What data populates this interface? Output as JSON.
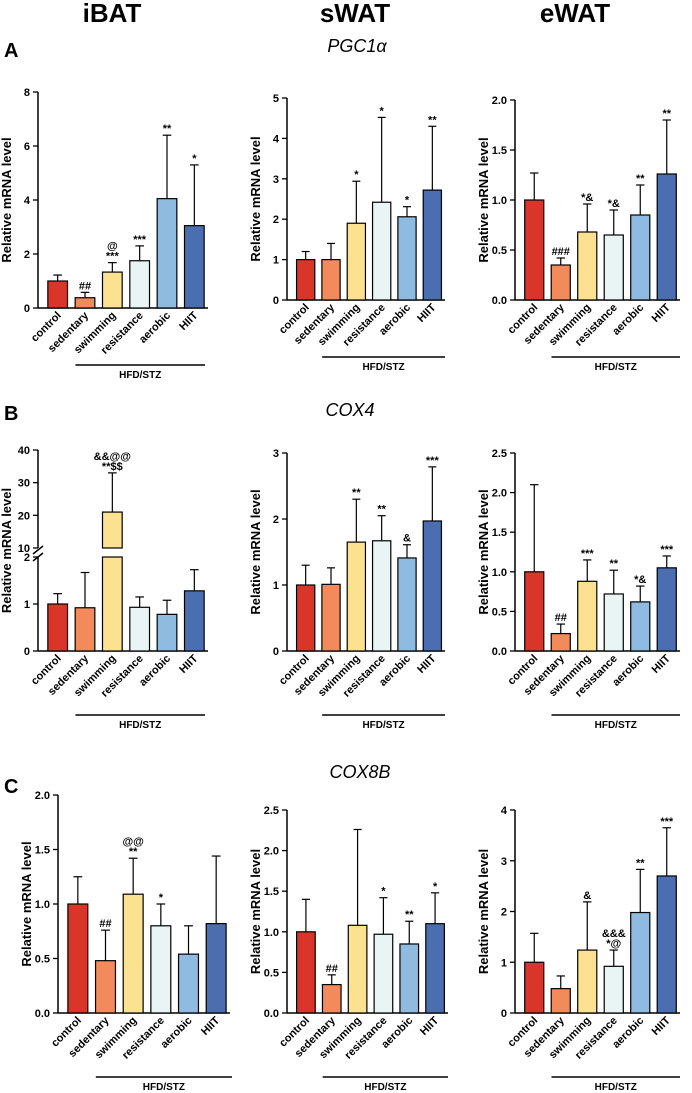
{
  "column_headers": [
    "iBAT",
    "sWAT",
    "eWAT"
  ],
  "panel_letters": [
    "A",
    "B",
    "C"
  ],
  "genes": [
    "PGC1α",
    "COX4",
    "COX8B"
  ],
  "ylabel": "Relative mRNA level",
  "group_label": "HFD/STZ",
  "colors": [
    "#d93529",
    "#f28a5b",
    "#fce191",
    "#e9f4f5",
    "#8ebbdf",
    "#4a6eaf"
  ],
  "chart_data": [
    {
      "type": "bar",
      "panel": "A",
      "gene": "PGC1α",
      "tissue": "iBAT",
      "categories": [
        "control",
        "sedentary",
        "swimming",
        "resistance",
        "aerobic",
        "HIIT"
      ],
      "values": [
        1.0,
        0.38,
        1.33,
        1.75,
        4.05,
        3.05
      ],
      "errors": [
        0.22,
        0.2,
        0.35,
        0.55,
        2.35,
        2.25
      ],
      "annotations": [
        "",
        "##",
        "@\n***",
        "***",
        "**",
        "*"
      ],
      "ylim": [
        0,
        8
      ],
      "yticks": [
        0,
        2,
        4,
        6,
        8
      ]
    },
    {
      "type": "bar",
      "panel": "A",
      "gene": "PGC1α",
      "tissue": "sWAT",
      "categories": [
        "control",
        "sedentary",
        "swimming",
        "resistance",
        "aerobic",
        "HIIT"
      ],
      "values": [
        1.0,
        1.0,
        1.9,
        2.42,
        2.06,
        2.72
      ],
      "errors": [
        0.2,
        0.4,
        1.04,
        2.1,
        0.25,
        1.58
      ],
      "annotations": [
        "",
        "",
        "*",
        "*",
        "*",
        "**"
      ],
      "ylim": [
        0,
        5
      ],
      "yticks": [
        0,
        1,
        2,
        3,
        4,
        5
      ]
    },
    {
      "type": "bar",
      "panel": "A",
      "gene": "PGC1α",
      "tissue": "eWAT",
      "categories": [
        "control",
        "sedentary",
        "swimming",
        "resistance",
        "aerobic",
        "HIIT"
      ],
      "values": [
        1.0,
        0.35,
        0.68,
        0.65,
        0.85,
        1.26
      ],
      "errors": [
        0.27,
        0.07,
        0.28,
        0.25,
        0.3,
        0.54
      ],
      "annotations": [
        "",
        "###",
        "*&",
        "*&",
        "**",
        "**"
      ],
      "ylim": [
        0,
        2
      ],
      "yticks": [
        0.0,
        0.5,
        1.0,
        1.5,
        2.0
      ]
    },
    {
      "type": "bar",
      "panel": "B",
      "gene": "COX4",
      "tissue": "iBAT",
      "categories": [
        "control",
        "sedentary",
        "swimming",
        "resistance",
        "aerobic",
        "HIIT"
      ],
      "values": [
        1.0,
        0.92,
        21.0,
        0.93,
        0.78,
        1.28
      ],
      "errors": [
        0.22,
        0.75,
        12.0,
        0.22,
        0.3,
        0.45
      ],
      "annotations": [
        "",
        "",
        "&&@@\n**$$",
        "",
        "",
        ""
      ],
      "ylim": [
        0,
        40
      ],
      "yticks": [
        0,
        1,
        2,
        10,
        20,
        30,
        40
      ],
      "axis_break": [
        2,
        10
      ]
    },
    {
      "type": "bar",
      "panel": "B",
      "gene": "COX4",
      "tissue": "sWAT",
      "categories": [
        "control",
        "sedentary",
        "swimming",
        "resistance",
        "aerobic",
        "HIIT"
      ],
      "values": [
        1.0,
        1.01,
        1.65,
        1.67,
        1.41,
        1.97
      ],
      "errors": [
        0.3,
        0.25,
        0.65,
        0.38,
        0.2,
        0.82
      ],
      "annotations": [
        "",
        "",
        "**",
        "**",
        "&",
        "***"
      ],
      "ylim": [
        0,
        3
      ],
      "yticks": [
        0,
        1,
        2,
        3
      ]
    },
    {
      "type": "bar",
      "panel": "B",
      "gene": "COX4",
      "tissue": "eWAT",
      "categories": [
        "control",
        "sedentary",
        "swimming",
        "resistance",
        "aerobic",
        "HIIT"
      ],
      "values": [
        1.0,
        0.22,
        0.88,
        0.72,
        0.62,
        1.05
      ],
      "errors": [
        1.1,
        0.12,
        0.27,
        0.3,
        0.2,
        0.15
      ],
      "annotations": [
        "",
        "##",
        "***",
        "**",
        "*&",
        "***"
      ],
      "ylim": [
        0,
        2.5
      ],
      "yticks": [
        0.0,
        0.5,
        1.0,
        1.5,
        2.0,
        2.5
      ]
    },
    {
      "type": "bar",
      "panel": "C",
      "gene": "COX8B",
      "tissue": "iBAT",
      "categories": [
        "control",
        "sedentary",
        "swimming",
        "resistance",
        "aerobic",
        "HIIT"
      ],
      "values": [
        1.0,
        0.48,
        1.09,
        0.8,
        0.54,
        0.82
      ],
      "errors": [
        0.25,
        0.28,
        0.33,
        0.2,
        0.26,
        0.62
      ],
      "annotations": [
        "",
        "##",
        "@@\n**",
        "*",
        "",
        ""
      ],
      "ylim": [
        0,
        2
      ],
      "yticks": [
        0.0,
        0.5,
        1.0,
        1.5,
        2.0
      ]
    },
    {
      "type": "bar",
      "panel": "C",
      "gene": "COX8B",
      "tissue": "sWAT",
      "categories": [
        "control",
        "sedentary",
        "swimming",
        "resistance",
        "aerobic",
        "HIIT"
      ],
      "values": [
        1.0,
        0.35,
        1.08,
        0.97,
        0.85,
        1.1
      ],
      "errors": [
        0.4,
        0.12,
        1.18,
        0.45,
        0.28,
        0.38
      ],
      "annotations": [
        "",
        "##",
        "",
        "*",
        "**",
        "*"
      ],
      "ylim": [
        0,
        2.5
      ],
      "yticks": [
        0.0,
        0.5,
        1.0,
        1.5,
        2.0,
        2.5
      ]
    },
    {
      "type": "bar",
      "panel": "C",
      "gene": "COX8B",
      "tissue": "eWAT",
      "categories": [
        "control",
        "sedentary",
        "swimming",
        "resistance",
        "aerobic",
        "HIIT"
      ],
      "values": [
        1.0,
        0.48,
        1.24,
        0.92,
        1.98,
        2.7
      ],
      "errors": [
        0.57,
        0.25,
        0.95,
        0.32,
        0.85,
        0.95
      ],
      "annotations": [
        "",
        "",
        "&",
        "&&&\n*@",
        "**",
        "***"
      ],
      "ylim": [
        0,
        4
      ],
      "yticks": [
        0,
        1,
        2,
        3,
        4
      ]
    }
  ]
}
